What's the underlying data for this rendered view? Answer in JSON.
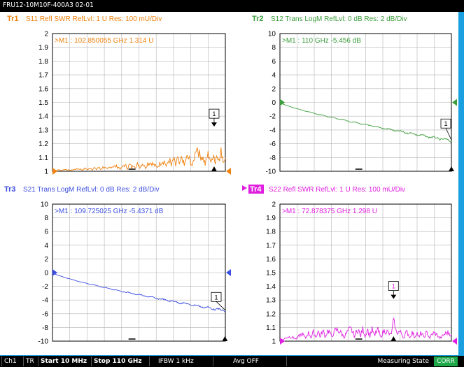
{
  "window": {
    "title": "FRU12-10M10F-400A3 02-01"
  },
  "traces": [
    {
      "id": "Tr1",
      "label": "Tr1",
      "header": "S11 Refl SWR RefLvl: 1  U Res: 100 mU/Div",
      "color": "#f0820f",
      "marker_readout": ">M1 :  102.850055 GHz  1.314  U",
      "marker_label": "1",
      "marker_value": 1.314,
      "y_ticks": [
        "2",
        "1.9",
        "1.8",
        "1.7",
        "1.6",
        "1.5",
        "1.4",
        "1.3",
        "1.2",
        "1.1",
        "1"
      ],
      "chart_data": {
        "type": "line",
        "ylim": [
          1,
          2
        ],
        "ref_level": 1,
        "x_unit": "GHz",
        "x_range": [
          0.01,
          110
        ],
        "marker_x": 102.85
      }
    },
    {
      "id": "Tr2",
      "label": "Tr2",
      "header": "S12 Trans LogM RefLvl: 0  dB Res: 2  dB/Div",
      "color": "#3c9e3c",
      "marker_readout": ">M1 :  110  GHz  -5.456  dB",
      "marker_label": "1",
      "marker_value": -5.456,
      "y_ticks": [
        "10",
        "8",
        "6",
        "4",
        "2",
        "0",
        "-2",
        "-4",
        "-6",
        "-8",
        "-10"
      ],
      "chart_data": {
        "type": "line",
        "ylim": [
          -10,
          10
        ],
        "ref_level": 0,
        "x_unit": "GHz",
        "x_range": [
          0.01,
          110
        ],
        "marker_x": 110
      }
    },
    {
      "id": "Tr3",
      "label": "Tr3",
      "header": "S21 Trans LogM RefLvl: 0  dB Res: 2  dB/Div",
      "color": "#3c4ee0",
      "marker_readout": ">M1 :  109.725025 GHz  -5.4371  dB",
      "marker_label": "1",
      "marker_value": -5.4371,
      "y_ticks": [
        "10",
        "8",
        "6",
        "4",
        "2",
        "0",
        "-2",
        "-4",
        "-6",
        "-8",
        "-10"
      ],
      "chart_data": {
        "type": "line",
        "ylim": [
          -10,
          10
        ],
        "ref_level": 0,
        "x_unit": "GHz",
        "x_range": [
          0.01,
          110
        ],
        "marker_x": 109.725
      }
    },
    {
      "id": "Tr4",
      "label": "Tr4",
      "header": "S22 Refl SWR RefLvl: 1  U Res: 100 mU/Div",
      "color": "#e01ee0",
      "marker_readout": ">M1 :  72.878375 GHz  1.298  U",
      "marker_label": "1",
      "marker_value": 1.298,
      "y_ticks": [
        "2",
        "1.9",
        "1.8",
        "1.7",
        "1.6",
        "1.5",
        "1.4",
        "1.3",
        "1.2",
        "1.1",
        "1"
      ],
      "chart_data": {
        "type": "line",
        "ylim": [
          1,
          2
        ],
        "ref_level": 1,
        "x_unit": "GHz",
        "x_range": [
          0.01,
          110
        ],
        "marker_x": 72.878
      }
    }
  ],
  "status": {
    "channel": "Ch1",
    "mode": "TR",
    "start": "Start 10 MHz",
    "stop": "Stop 110 GHz",
    "ifbw": "IFBW 1 kHz",
    "avg": "Avg OFF",
    "state": "Measuring State",
    "corr": "CORR"
  },
  "colors": {
    "grid": "#aaaaaa",
    "frame": "#000000",
    "titlebar": "#000000",
    "accent": "#1aa0e0"
  }
}
